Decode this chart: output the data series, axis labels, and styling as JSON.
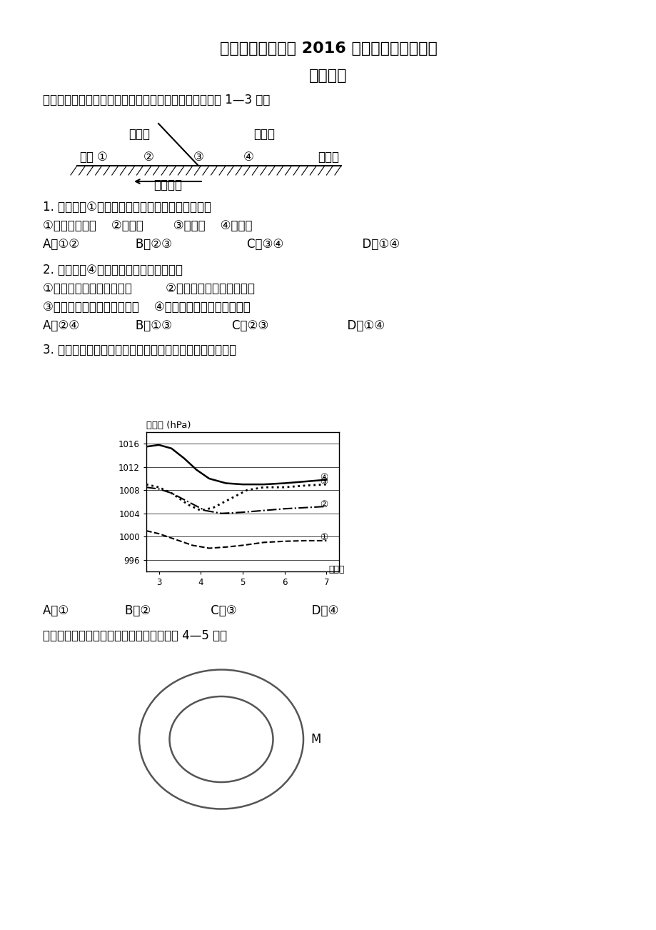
{
  "title": "四川省三台中学校 2016 届高三下学期周练二",
  "subtitle": "地理试题",
  "bg_color": "#ffffff",
  "text_color": "#000000",
  "intro_text": "右图表示某天气系统经过北京地区的变化过程，读图完成 1—3 题。",
  "warm_air": "暖空气",
  "cold_air": "冷空气",
  "beijing": "北京",
  "near_ground": "近地面",
  "motion": "运动方向",
  "q1_line1": "1. 北京处在①阶段时，天气现象和气压分布状况是",
  "q1_line2": "①天气晴朗温暖    ②气压高        ③天气阴    ④气压低",
  "q1_line3": "A．①②               B．②③                    C．③④                     D．①④",
  "q2_line1": "2. 北京处在④阶段时，下列叙述正确的是",
  "q2_line2": "①冷锋移出本市，天气晴朗         ②暖锋移出本市，天气晴朗",
  "q2_line3": "③受冷空气团控制，气温下降    ④天气已转阴，出现降水迹象",
  "q2_line4": "A．②④               B．①③                C．②③                     D．①④",
  "q3_line1": "3. 右图的四条曲线，表示该天气系统过境前后气压变化的是",
  "chart_ylabel": "气压值 (hPa)",
  "chart_xlabel": "（日）",
  "q3_answers": "A．①               B．②                C．③                    D．④",
  "q4_intro": "下图示意海平面两条闭合等压线，读图回答 4—5 题。",
  "label_M": "M",
  "curve4_pts_x": [
    2.7,
    3.0,
    3.3,
    3.6,
    3.9,
    4.2,
    4.6,
    5.0,
    5.5,
    6.0,
    6.5,
    7.0
  ],
  "curve4_pts_y": [
    1015.5,
    1015.8,
    1015.2,
    1013.5,
    1011.5,
    1010.0,
    1009.2,
    1009.0,
    1009.0,
    1009.2,
    1009.5,
    1009.8
  ],
  "curve3_pts_x": [
    2.7,
    3.0,
    3.3,
    3.7,
    4.0,
    4.3,
    4.7,
    5.1,
    5.5,
    6.0,
    6.5,
    7.0
  ],
  "curve3_pts_y": [
    1009.0,
    1008.5,
    1007.5,
    1005.5,
    1004.5,
    1005.0,
    1006.5,
    1008.0,
    1008.5,
    1008.5,
    1008.8,
    1009.0
  ],
  "curve2_pts_x": [
    2.7,
    3.0,
    3.3,
    3.7,
    4.1,
    4.5,
    5.0,
    5.5,
    6.0,
    6.5,
    7.0
  ],
  "curve2_pts_y": [
    1008.5,
    1008.2,
    1007.5,
    1006.0,
    1004.5,
    1004.0,
    1004.2,
    1004.5,
    1004.8,
    1005.0,
    1005.2
  ],
  "curve1_pts_x": [
    2.7,
    3.0,
    3.4,
    3.8,
    4.2,
    4.6,
    5.0,
    5.5,
    6.0,
    6.5,
    7.0
  ],
  "curve1_pts_y": [
    1001.0,
    1000.5,
    999.5,
    998.5,
    998.0,
    998.2,
    998.5,
    999.0,
    999.2,
    999.3,
    999.3
  ]
}
